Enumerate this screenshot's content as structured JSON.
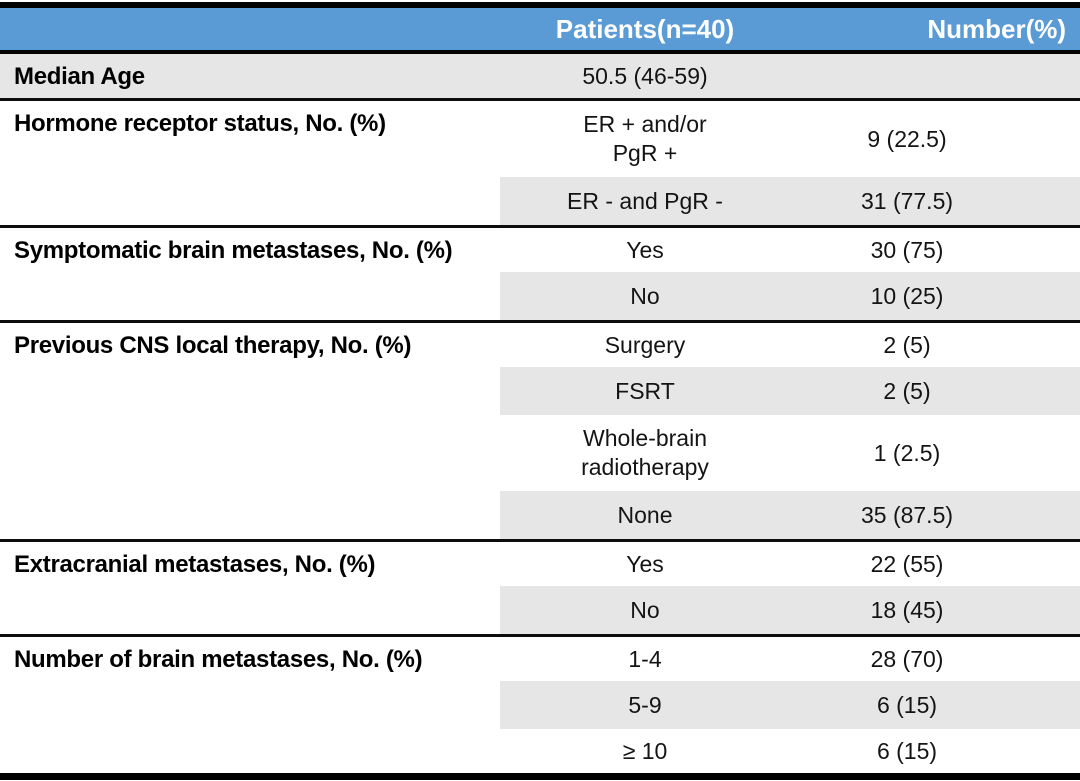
{
  "table": {
    "header": {
      "col1": "",
      "col2": "Patients(n=40)",
      "col3": "Number(%)"
    },
    "sections": [
      {
        "label": "Median Age",
        "full_shade": true,
        "rows": [
          {
            "value": "50.5 (46-59)",
            "number": "",
            "shaded": false,
            "tall": false
          }
        ]
      },
      {
        "label": "Hormone receptor status, No. (%)",
        "full_shade": false,
        "rows": [
          {
            "value": "ER + and/or\nPgR +",
            "number": "9 (22.5)",
            "shaded": false,
            "tall": true
          },
          {
            "value": "ER - and PgR -",
            "number": "31 (77.5)",
            "shaded": true,
            "tall": false
          }
        ]
      },
      {
        "label": "Symptomatic brain metastases, No. (%)",
        "full_shade": false,
        "rows": [
          {
            "value": "Yes",
            "number": "30 (75)",
            "shaded": false,
            "tall": false
          },
          {
            "value": "No",
            "number": "10 (25)",
            "shaded": true,
            "tall": false
          }
        ]
      },
      {
        "label": "Previous CNS local therapy, No. (%)",
        "full_shade": false,
        "rows": [
          {
            "value": "Surgery",
            "number": "2 (5)",
            "shaded": false,
            "tall": false
          },
          {
            "value": "FSRT",
            "number": "2 (5)",
            "shaded": true,
            "tall": false
          },
          {
            "value": "Whole-brain\nradiotherapy",
            "number": "1 (2.5)",
            "shaded": false,
            "tall": true
          },
          {
            "value": "None",
            "number": "35 (87.5)",
            "shaded": true,
            "tall": false
          }
        ]
      },
      {
        "label": "Extracranial metastases, No. (%)",
        "full_shade": false,
        "rows": [
          {
            "value": "Yes",
            "number": "22 (55)",
            "shaded": false,
            "tall": false
          },
          {
            "value": "No",
            "number": "18 (45)",
            "shaded": true,
            "tall": false
          }
        ]
      },
      {
        "label": "Number of brain metastases, No. (%)",
        "full_shade": false,
        "rows": [
          {
            "value": "1-4",
            "number": "28 (70)",
            "shaded": false,
            "tall": false
          },
          {
            "value": "5-9",
            "number": "6 (15)",
            "shaded": true,
            "tall": false
          },
          {
            "value": "≥ 10",
            "number": "6 (15)",
            "shaded": false,
            "tall": false
          }
        ]
      }
    ],
    "colors": {
      "header_bg": "#5B9BD5",
      "header_text": "#FFFFFF",
      "row_shade": "#E7E6E6",
      "rule": "#000000"
    }
  }
}
